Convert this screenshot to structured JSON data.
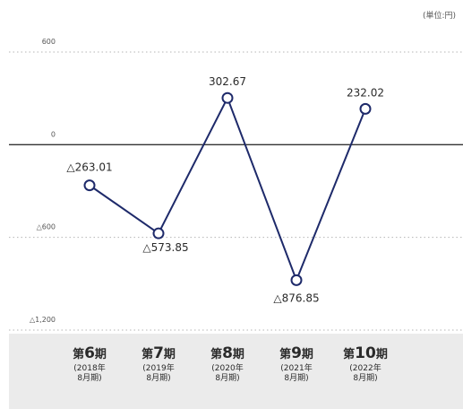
{
  "unit_label": "(単位:円)",
  "chart_data": {
    "type": "line",
    "title": "",
    "xlabel": "",
    "ylabel": "",
    "ylim": [
      -1200,
      600
    ],
    "y_ticks": [
      600,
      0,
      -600,
      -1200
    ],
    "y_tick_labels": [
      "600",
      "0",
      "△600",
      "△1,200"
    ],
    "grid": "dotted",
    "categories": [
      "第6期",
      "第7期",
      "第8期",
      "第9期",
      "第10期"
    ],
    "category_details": [
      {
        "prefix": "第",
        "num": "6",
        "suffix": "期",
        "year": "2018年",
        "month": "8月期"
      },
      {
        "prefix": "第",
        "num": "7",
        "suffix": "期",
        "year": "2019年",
        "month": "8月期"
      },
      {
        "prefix": "第",
        "num": "8",
        "suffix": "期",
        "year": "2020年",
        "month": "8月期"
      },
      {
        "prefix": "第",
        "num": "9",
        "suffix": "期",
        "year": "2021年",
        "month": "8月期"
      },
      {
        "prefix": "第",
        "num": "10",
        "suffix": "期",
        "year": "2022年",
        "month": "8月期"
      }
    ],
    "values": [
      -263.01,
      -573.85,
      302.67,
      -876.85,
      232.02
    ],
    "data_labels": [
      "△263.01",
      "△573.85",
      "302.67",
      "△876.85",
      "232.02"
    ],
    "line_color": "#1e2a6a"
  }
}
